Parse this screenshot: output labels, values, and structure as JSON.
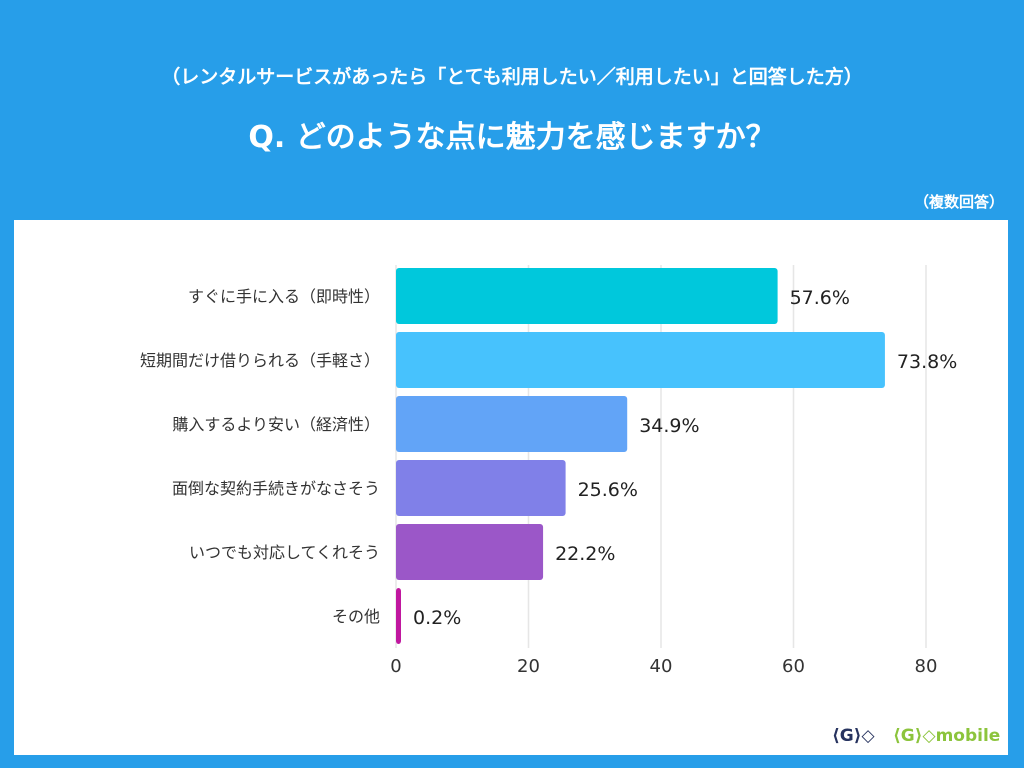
{
  "header": {
    "subtitle": "（レンタルサービスがあったら「とても利用したい／利用したい」と回答した方）",
    "title": "Q. どのような点に魅力を感じますか？",
    "note": "（複数回答）"
  },
  "chart_data": {
    "type": "bar",
    "orientation": "horizontal",
    "categories": [
      "すぐに手に入る（即時性）",
      "短期間だけ借りられる（手軽さ）",
      "購入するより安い（経済性）",
      "面倒な契約手続きがなさそう",
      "いつでも対応してくれそう",
      "その他"
    ],
    "values": [
      57.6,
      73.8,
      34.9,
      25.6,
      22.2,
      0.2
    ],
    "data_labels": [
      "57.6%",
      "73.8%",
      "34.9%",
      "25.6%",
      "22.2%",
      "0.2%"
    ],
    "colors": [
      "#00c8dc",
      "#47c2fd",
      "#62a4f7",
      "#8080e8",
      "#9b57c8",
      "#c0179f"
    ],
    "xlim": [
      0,
      80
    ],
    "xticks": [
      "0",
      "20",
      "40",
      "60",
      "80"
    ],
    "grid": true
  },
  "logos": {
    "geo": "GEO",
    "geo_mobile": "GEO mobile"
  }
}
